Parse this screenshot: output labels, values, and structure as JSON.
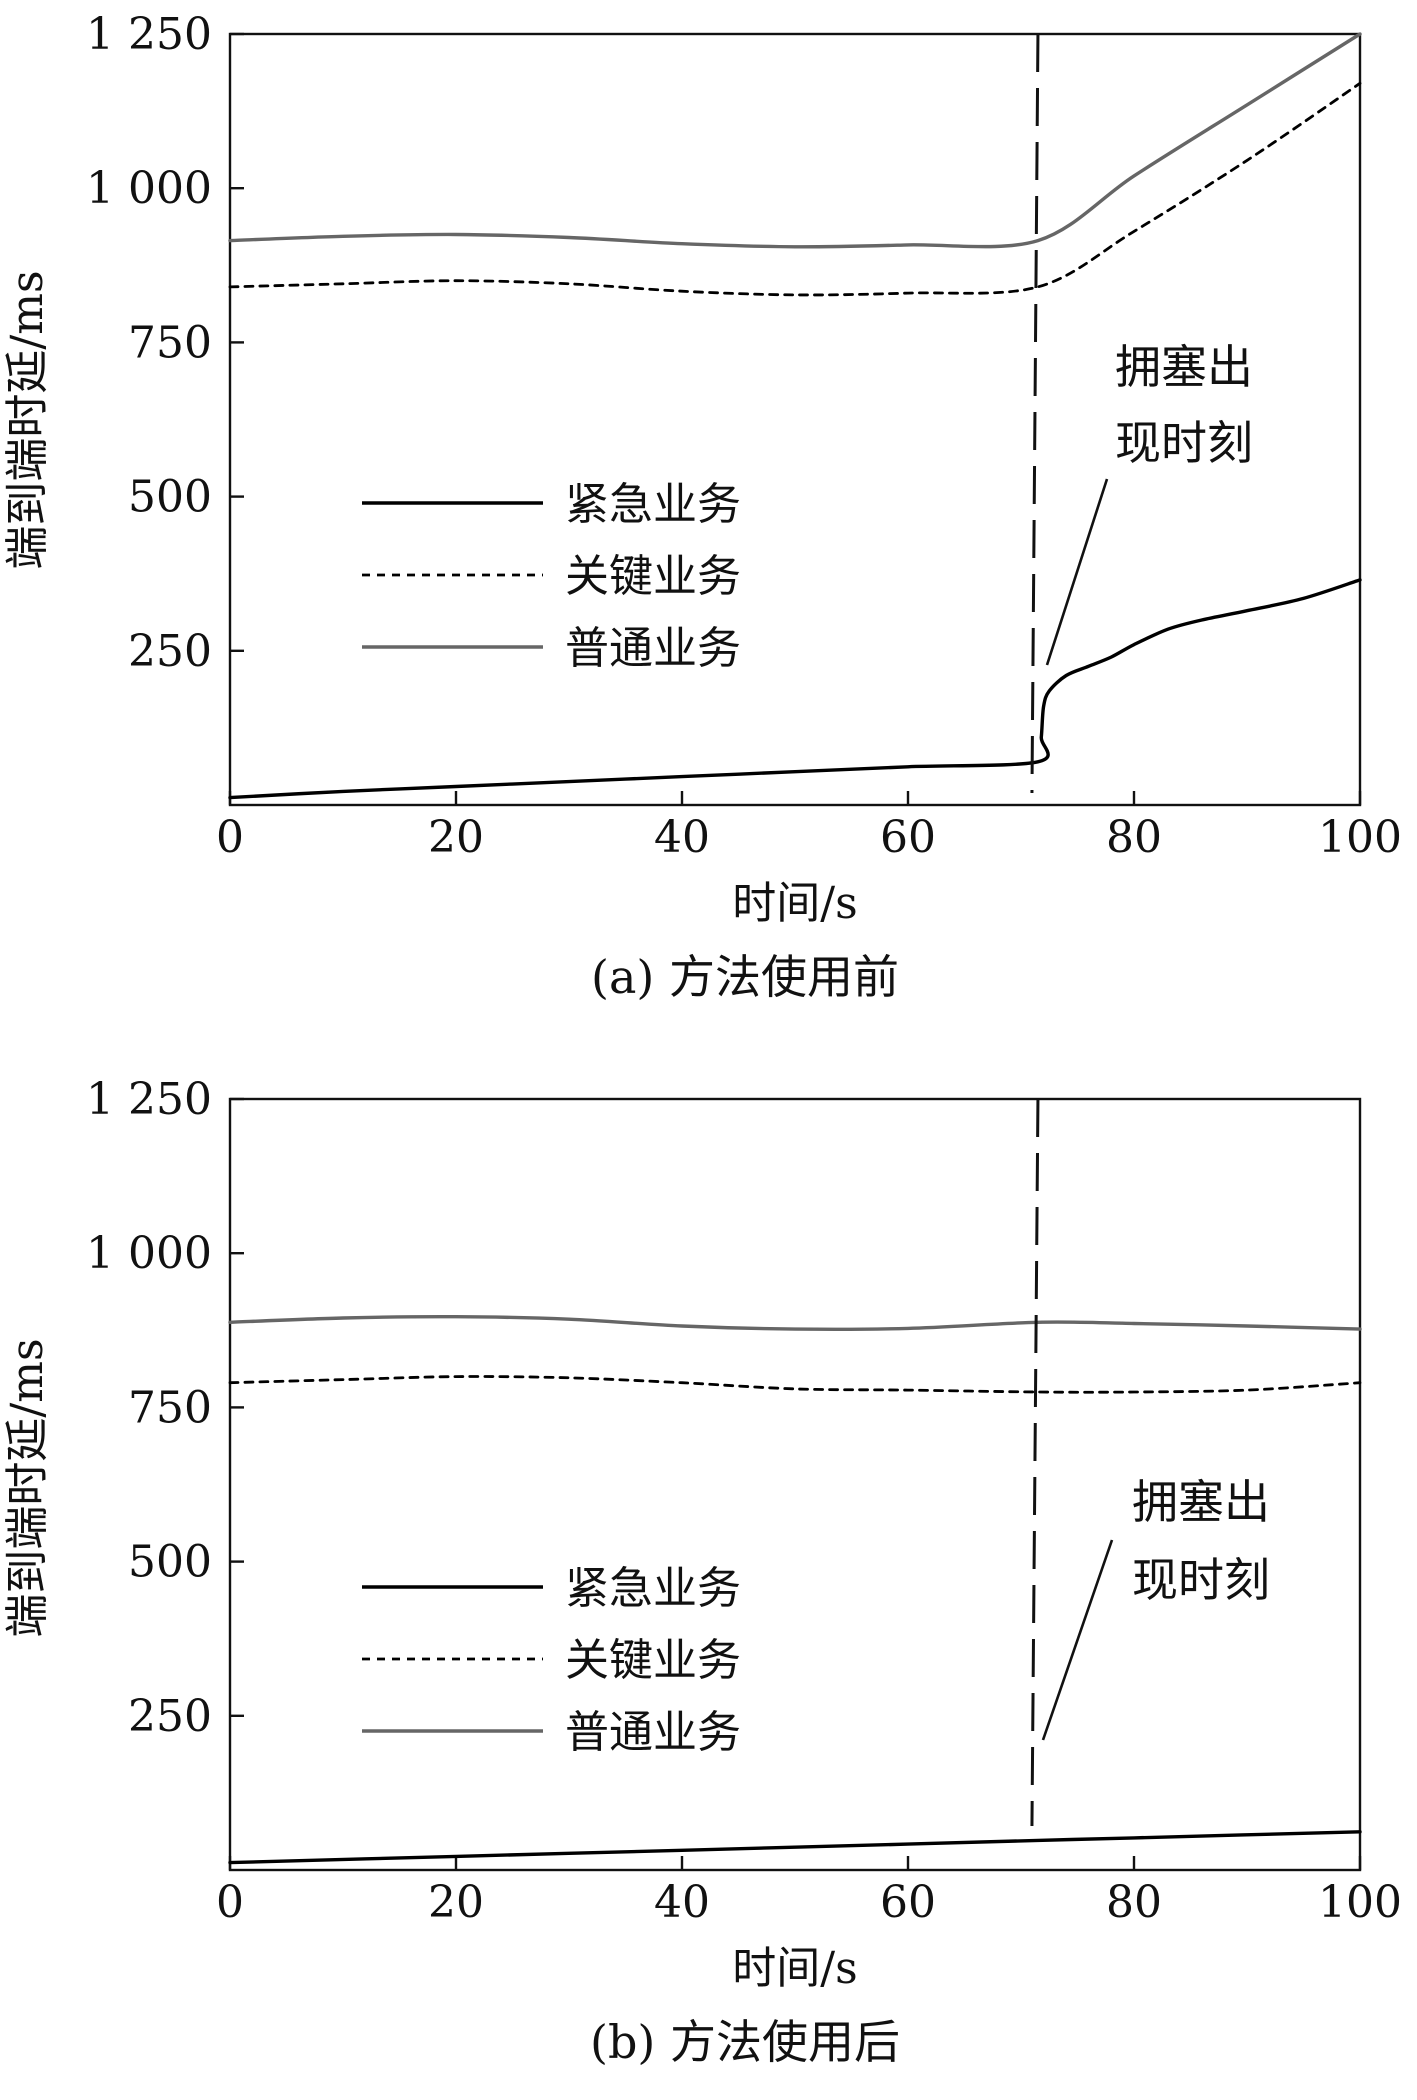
{
  "chart_data": [
    {
      "type": "line",
      "caption": "(a) 方法使用前",
      "xlabel": "时间/s",
      "ylabel": "端到端时延/ms",
      "xlim": [
        0,
        100
      ],
      "ylim": [
        0,
        1250
      ],
      "xticks": [
        0,
        20,
        40,
        60,
        80,
        100
      ],
      "xtick_labels": [
        "0",
        "20",
        "40",
        "60",
        "80",
        "100"
      ],
      "yticks": [
        250,
        500,
        750,
        1000,
        1250
      ],
      "ytick_labels": [
        "250",
        "500",
        "750",
        "1 000",
        "1 250"
      ],
      "grid": false,
      "legend_position": "middle-left",
      "event_line": {
        "x": 71.5,
        "label_lines": [
          "拥塞出",
          "现时刻"
        ]
      },
      "series": [
        {
          "name": "紧急业务",
          "style": "solid",
          "color": "#000000",
          "x": [
            0,
            10,
            20,
            30,
            40,
            50,
            60,
            71.5,
            71.8,
            72,
            72.5,
            74,
            76,
            78,
            80,
            83,
            86,
            90,
            95,
            100
          ],
          "y": [
            12,
            22,
            30,
            38,
            46,
            54,
            62,
            70,
            110,
            160,
            185,
            210,
            225,
            240,
            260,
            285,
            300,
            315,
            335,
            365
          ]
        },
        {
          "name": "关键业务",
          "style": "dashed",
          "color": "#000000",
          "x": [
            0,
            10,
            20,
            30,
            40,
            50,
            60,
            71.5,
            80,
            90,
            100
          ],
          "y": [
            840,
            845,
            850,
            845,
            833,
            827,
            830,
            840,
            930,
            1045,
            1170
          ]
        },
        {
          "name": "普通业务",
          "style": "solid",
          "color": "#666666",
          "x": [
            0,
            10,
            20,
            30,
            40,
            50,
            60,
            71.5,
            80,
            90,
            100
          ],
          "y": [
            915,
            922,
            925,
            920,
            910,
            905,
            908,
            915,
            1020,
            1135,
            1250
          ]
        }
      ]
    },
    {
      "type": "line",
      "caption": "(b) 方法使用后",
      "xlabel": "时间/s",
      "ylabel": "端到端时延/ms",
      "xlim": [
        0,
        100
      ],
      "ylim": [
        0,
        1250
      ],
      "xticks": [
        0,
        20,
        40,
        60,
        80,
        100
      ],
      "xtick_labels": [
        "0",
        "20",
        "40",
        "60",
        "80",
        "100"
      ],
      "yticks": [
        250,
        500,
        750,
        1000,
        1250
      ],
      "ytick_labels": [
        "250",
        "500",
        "750",
        "1 000",
        "1 250"
      ],
      "grid": false,
      "legend_position": "middle-left",
      "event_line": {
        "x": 71.5,
        "label_lines": [
          "拥塞出",
          "现时刻"
        ]
      },
      "series": [
        {
          "name": "紧急业务",
          "style": "solid",
          "color": "#000000",
          "x": [
            0,
            20,
            40,
            60,
            71.5,
            80,
            100
          ],
          "y": [
            12,
            22,
            32,
            42,
            48,
            52,
            62
          ]
        },
        {
          "name": "关键业务",
          "style": "dashed",
          "color": "#000000",
          "x": [
            0,
            10,
            20,
            30,
            40,
            50,
            60,
            71.5,
            80,
            90,
            100
          ],
          "y": [
            790,
            795,
            800,
            798,
            790,
            780,
            778,
            775,
            775,
            778,
            790
          ]
        },
        {
          "name": "普通业务",
          "style": "solid",
          "color": "#666666",
          "x": [
            0,
            10,
            20,
            30,
            40,
            50,
            60,
            71.5,
            80,
            90,
            100
          ],
          "y": [
            888,
            895,
            897,
            893,
            882,
            877,
            878,
            888,
            886,
            882,
            877
          ]
        }
      ]
    }
  ]
}
